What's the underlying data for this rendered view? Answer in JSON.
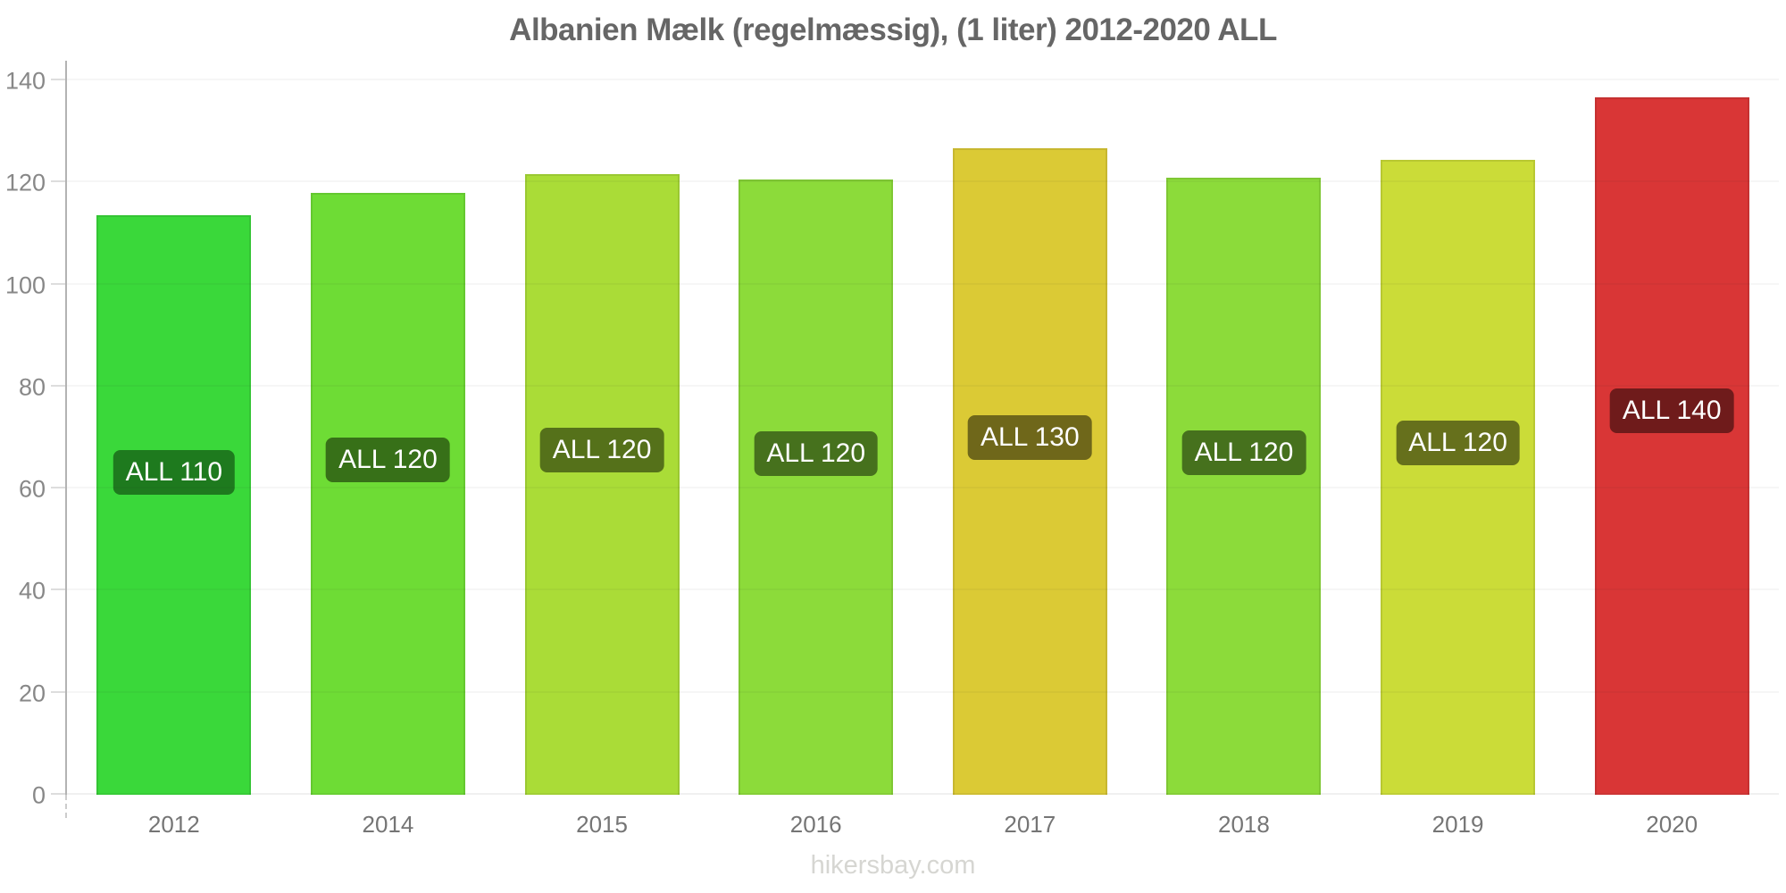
{
  "watermark": "hikersbay.com",
  "chart_data": {
    "type": "bar",
    "title": "Albanien Mælk (regelmæssig), (1 liter) 2012-2020 ALL",
    "currency": "ALL",
    "xlabel": "",
    "ylabel": "",
    "ylim": [
      0,
      140
    ],
    "yticks": [
      0,
      20,
      40,
      60,
      80,
      100,
      120,
      140
    ],
    "grid": "horizontal",
    "legend": "none",
    "categories": [
      "2012",
      "2014",
      "2015",
      "2016",
      "2017",
      "2018",
      "2019",
      "2020"
    ],
    "values": [
      113.6,
      118.0,
      121.7,
      120.6,
      126.7,
      121.0,
      124.5,
      136.6
    ],
    "bar_labels": [
      "ALL 110",
      "ALL 120",
      "ALL 120",
      "ALL 120",
      "ALL 130",
      "ALL 120",
      "ALL 120",
      "ALL 140"
    ],
    "bar_colors": [
      "#3ad83a",
      "#6edc35",
      "#aadc37",
      "#8cdb3a",
      "#dbca35",
      "#8cdb3a",
      "#cbdc38",
      "#d93636"
    ],
    "label_bg_colors": [
      "#1e7a1e",
      "#377018",
      "#55711a",
      "#46711d",
      "#6f671a",
      "#46711d",
      "#66701c",
      "#6f1b1b"
    ],
    "colors": {
      "title_text": "#666666",
      "axis_line": "#b3b3b3",
      "ytick_text": "#888888",
      "xtick_text": "#757575",
      "bar_label_text": "#ffffff",
      "watermark_text": "#d6d6d2"
    }
  }
}
